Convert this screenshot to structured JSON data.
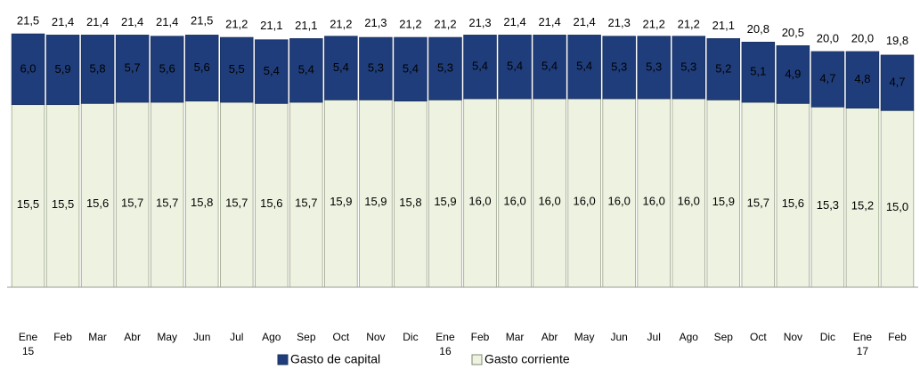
{
  "chart_data": {
    "type": "stacked_bar",
    "categories": [
      "Ene 15",
      "Feb",
      "Mar",
      "Abr",
      "May",
      "Jun",
      "Jul",
      "Ago",
      "Sep",
      "Oct",
      "Nov",
      "Dic",
      "Ene 16",
      "Feb",
      "Mar",
      "Abr",
      "May",
      "Jun",
      "Jul",
      "Ago",
      "Sep",
      "Oct",
      "Nov",
      "Dic",
      "Ene 17",
      "Feb"
    ],
    "ylim": [
      0,
      24
    ],
    "series": [
      {
        "name": "Gasto corriente",
        "color": "#eef3e1",
        "values": [
          15.5,
          15.5,
          15.6,
          15.7,
          15.7,
          15.8,
          15.7,
          15.6,
          15.7,
          15.9,
          15.9,
          15.8,
          15.9,
          16.0,
          16.0,
          16.0,
          16.0,
          16.0,
          16.0,
          16.0,
          15.9,
          15.7,
          15.6,
          15.3,
          15.2,
          15.0
        ],
        "value_labels": [
          "15,5",
          "15,5",
          "15,6",
          "15,7",
          "15,7",
          "15,8",
          "15,7",
          "15,6",
          "15,7",
          "15,9",
          "15,9",
          "15,8",
          "15,9",
          "16,0",
          "16,0",
          "16,0",
          "16,0",
          "16,0",
          "16,0",
          "16,0",
          "15,9",
          "15,7",
          "15,6",
          "15,3",
          "15,2",
          "15,0"
        ]
      },
      {
        "name": "Gasto de capital",
        "color": "#1f3d7a",
        "values": [
          6.0,
          5.9,
          5.8,
          5.7,
          5.6,
          5.6,
          5.5,
          5.4,
          5.4,
          5.4,
          5.3,
          5.4,
          5.3,
          5.4,
          5.4,
          5.4,
          5.4,
          5.3,
          5.3,
          5.3,
          5.2,
          5.1,
          4.9,
          4.7,
          4.8,
          4.7
        ],
        "value_labels": [
          "6,0",
          "5,9",
          "5,8",
          "5,7",
          "5,6",
          "5,6",
          "5,5",
          "5,4",
          "5,4",
          "5,4",
          "5,3",
          "5,4",
          "5,3",
          "5,4",
          "5,4",
          "5,4",
          "5,4",
          "5,3",
          "5,3",
          "5,3",
          "5,2",
          "5,1",
          "4,9",
          "4,7",
          "4,8",
          "4,7"
        ]
      }
    ],
    "totals": [
      21.5,
      21.4,
      21.4,
      21.4,
      21.4,
      21.5,
      21.2,
      21.1,
      21.1,
      21.2,
      21.3,
      21.2,
      21.2,
      21.3,
      21.4,
      21.4,
      21.4,
      21.3,
      21.2,
      21.2,
      21.1,
      20.8,
      20.5,
      20.0,
      20.0,
      19.8
    ],
    "total_labels": [
      "21,5",
      "21,4",
      "21,4",
      "21,4",
      "21,4",
      "21,5",
      "21,2",
      "21,1",
      "21,1",
      "21,2",
      "21,3",
      "21,2",
      "21,2",
      "21,3",
      "21,4",
      "21,4",
      "21,4",
      "21,3",
      "21,2",
      "21,2",
      "21,1",
      "20,8",
      "20,5",
      "20,0",
      "20,0",
      "19,8"
    ]
  }
}
